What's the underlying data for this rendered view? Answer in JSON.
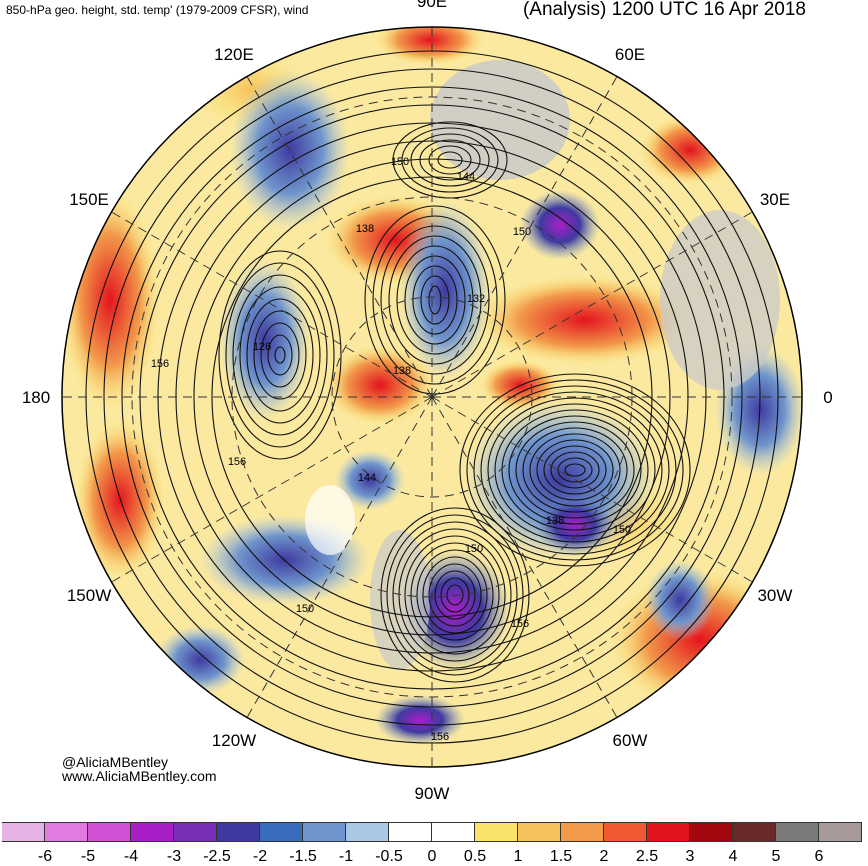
{
  "header": {
    "left_title": "850-hPa geo. height, std. temp' (1979-2009 CFSR), wind",
    "right_title": "(Analysis) 1200 UTC 16 Apr 2018"
  },
  "map": {
    "projection": "north-polar-stereographic",
    "longitude_labels": [
      {
        "name": "lon-90e",
        "text": "90E",
        "deg": 90
      },
      {
        "name": "lon-60e",
        "text": "60E",
        "deg": 60
      },
      {
        "name": "lon-30e",
        "text": "30E",
        "deg": 30
      },
      {
        "name": "lon-0",
        "text": "0",
        "deg": 0
      },
      {
        "name": "lon-30w",
        "text": "30W",
        "deg": -30
      },
      {
        "name": "lon-60w",
        "text": "60W",
        "deg": -60
      },
      {
        "name": "lon-90w",
        "text": "90W",
        "deg": -90
      },
      {
        "name": "lon-120w",
        "text": "120W",
        "deg": -120
      },
      {
        "name": "lon-150w",
        "text": "150W",
        "deg": -150
      },
      {
        "name": "lon-180",
        "text": "180",
        "deg": 180
      },
      {
        "name": "lon-150e",
        "text": "150E",
        "deg": 150
      },
      {
        "name": "lon-120e",
        "text": "120E",
        "deg": 120
      }
    ],
    "contour_labels": [
      "126",
      "132",
      "138",
      "144",
      "150",
      "156"
    ]
  },
  "credits": {
    "handle": "@AliciaMBentley",
    "url": "www.AliciaMBentley.com"
  },
  "colorbar": {
    "ticks": [
      "-6",
      "-5",
      "-4",
      "-3",
      "-2.5",
      "-2",
      "-1.5",
      "-1",
      "-0.5",
      "0",
      "0.5",
      "1",
      "1.5",
      "2",
      "2.5",
      "3",
      "4",
      "5",
      "6"
    ],
    "colors": [
      "#e6b3e6",
      "#e07be0",
      "#d04fd4",
      "#a81fc8",
      "#7a2fb8",
      "#3e3aa0",
      "#3a6cbc",
      "#6f95cc",
      "#a9c8e6",
      "#ffffff",
      "#ffffff",
      "#fbe26a",
      "#f5c15a",
      "#f2994a",
      "#ef5a32",
      "#e3141e",
      "#a2080d",
      "#6b2a2a",
      "#7a7a7a",
      "#a89a9a"
    ]
  }
}
